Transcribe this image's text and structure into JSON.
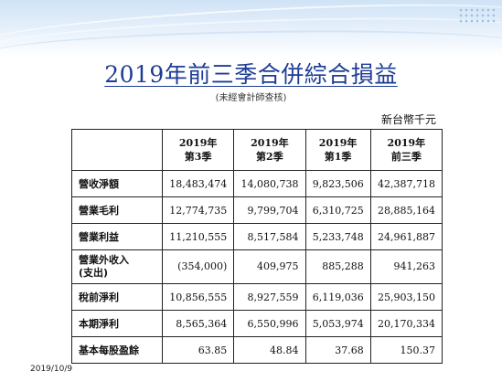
{
  "header": {
    "title": "2019年前三季合併綜合損益",
    "subtitle": "(未經會計師查核)",
    "unit": "新台幣千元"
  },
  "table": {
    "columns": [
      {
        "line1": "2019年",
        "line2": "第3季"
      },
      {
        "line1": "2019年",
        "line2": "第2季"
      },
      {
        "line1": "2019年",
        "line2": "第1季"
      },
      {
        "line1": "2019年",
        "line2": "前三季"
      }
    ],
    "rows": [
      {
        "label": "營收淨額",
        "values": [
          "18,483,474",
          "14,080,738",
          "9,823,506",
          "42,387,718"
        ]
      },
      {
        "label": "營業毛利",
        "values": [
          "12,774,735",
          "9,799,704",
          "6,310,725",
          "28,885,164"
        ]
      },
      {
        "label": "營業利益",
        "values": [
          "11,210,555",
          "8,517,584",
          "5,233,748",
          "24,961,887"
        ]
      },
      {
        "label": "營業外收入",
        "label2": "(支出)",
        "values": [
          "(354,000)",
          "409,975",
          "885,288",
          "941,263"
        ]
      },
      {
        "label": "稅前淨利",
        "values": [
          "10,856,555",
          "8,927,559",
          "6,119,036",
          "25,903,150"
        ]
      },
      {
        "label": "本期淨利",
        "values": [
          "8,565,364",
          "6,550,996",
          "5,053,974",
          "20,170,334"
        ]
      },
      {
        "label": "基本每股盈餘",
        "values": [
          "63.85",
          "48.84",
          "37.68",
          "150.37"
        ]
      }
    ]
  },
  "footer": {
    "date": "2019/10/9"
  }
}
